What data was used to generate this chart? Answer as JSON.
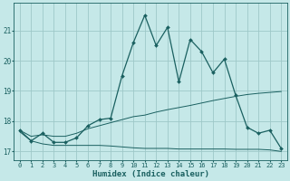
{
  "xlabel": "Humidex (Indice chaleur)",
  "bg_color": "#c5e8e8",
  "grid_color": "#9ec8c8",
  "line_color": "#1a6060",
  "xlim": [
    -0.5,
    23.5
  ],
  "ylim": [
    16.7,
    21.9
  ],
  "yticks": [
    17,
    18,
    19,
    20,
    21
  ],
  "xticks": [
    0,
    1,
    2,
    3,
    4,
    5,
    6,
    7,
    8,
    9,
    10,
    11,
    12,
    13,
    14,
    15,
    16,
    17,
    18,
    19,
    20,
    21,
    22,
    23
  ],
  "line1_x": [
    0,
    1,
    2,
    3,
    4,
    5,
    6,
    7,
    8,
    9,
    10,
    11,
    12,
    13,
    14,
    15,
    16,
    17,
    18,
    19,
    20,
    21,
    22,
    23
  ],
  "line1_y": [
    17.7,
    17.35,
    17.6,
    17.3,
    17.3,
    17.45,
    17.85,
    18.05,
    18.1,
    19.5,
    20.6,
    21.5,
    20.5,
    21.1,
    19.3,
    20.7,
    20.3,
    19.6,
    20.05,
    18.85,
    17.8,
    17.6,
    17.7,
    17.1
  ],
  "line2_x": [
    0,
    1,
    2,
    3,
    4,
    5,
    6,
    7,
    8,
    9,
    10,
    11,
    12,
    13,
    14,
    15,
    16,
    17,
    18,
    19,
    20,
    21,
    22,
    23
  ],
  "line2_y": [
    17.7,
    17.5,
    17.55,
    17.5,
    17.5,
    17.6,
    17.75,
    17.85,
    17.95,
    18.05,
    18.15,
    18.2,
    18.3,
    18.38,
    18.45,
    18.52,
    18.6,
    18.68,
    18.75,
    18.82,
    18.88,
    18.92,
    18.95,
    18.98
  ],
  "line3_x": [
    0,
    1,
    2,
    3,
    4,
    5,
    6,
    7,
    8,
    9,
    10,
    11,
    12,
    13,
    14,
    15,
    16,
    17,
    18,
    19,
    20,
    21,
    22,
    23
  ],
  "line3_y": [
    17.65,
    17.35,
    17.25,
    17.2,
    17.2,
    17.2,
    17.2,
    17.2,
    17.18,
    17.15,
    17.12,
    17.1,
    17.1,
    17.1,
    17.08,
    17.08,
    17.08,
    17.08,
    17.08,
    17.07,
    17.07,
    17.07,
    17.05,
    17.0
  ]
}
